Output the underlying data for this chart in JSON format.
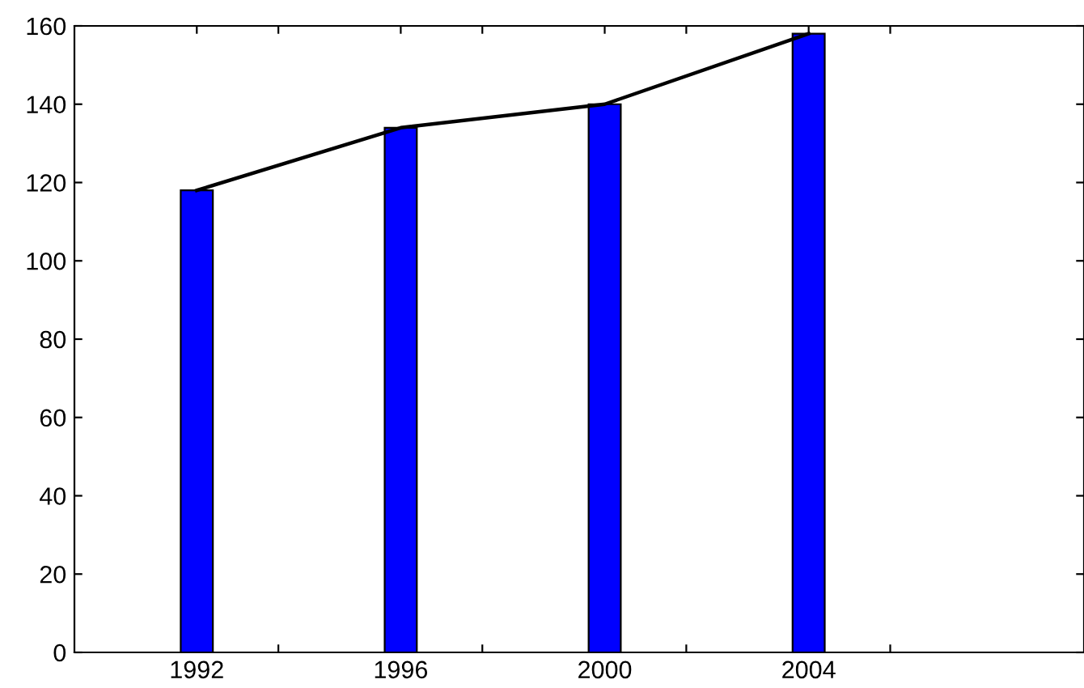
{
  "chart_data": {
    "type": "bar",
    "x": [
      1992,
      1996,
      2000,
      2004
    ],
    "series": [
      {
        "color": "#0000ff",
        "values": [
          118,
          134,
          140,
          158
        ]
      },
      {
        "type": "line",
        "color": "#000000",
        "values": [
          118,
          134,
          140,
          158
        ]
      }
    ],
    "xlim": [
      1989.6,
      2009.4
    ],
    "xticks": [
      1992,
      {
        "value": 1993.6,
        "label": null
      },
      1996,
      {
        "value": 1997.6,
        "label": null
      },
      2000,
      {
        "value": 2001.6,
        "label": null
      },
      2004,
      {
        "value": 2005.6,
        "label": null
      }
    ],
    "ylim": [
      0,
      160
    ],
    "yticks": [
      0,
      20,
      40,
      60,
      80,
      100,
      120,
      140,
      160
    ],
    "grid": false
  }
}
